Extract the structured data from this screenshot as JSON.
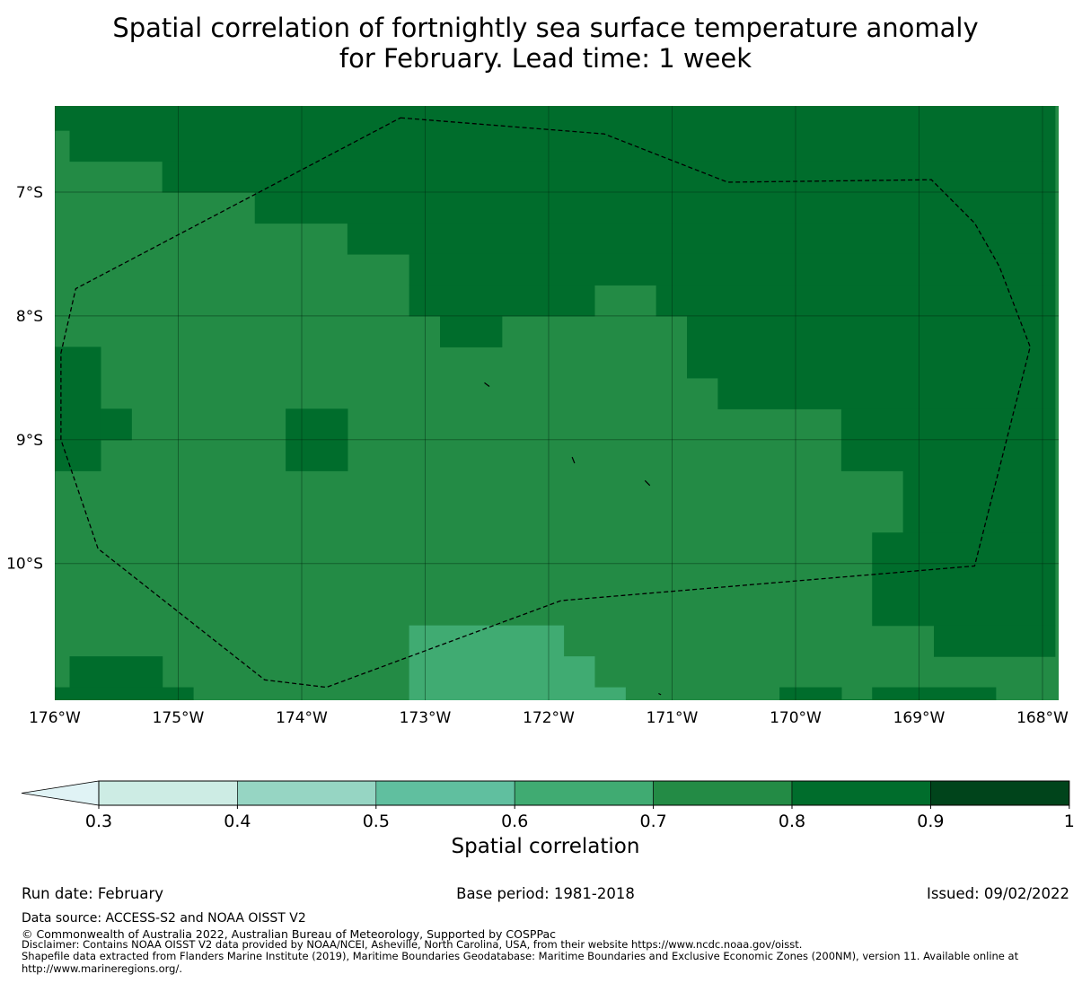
{
  "title": {
    "line1": "Spatial correlation of fortnightly sea surface temperature anomaly",
    "line2": "for February. Lead time: 1 week"
  },
  "chart_data": {
    "type": "heatmap",
    "title": "Spatial correlation of fortnightly sea surface temperature anomaly for February. Lead time: 1 week",
    "x_ticks": [
      {
        "value": -176,
        "label": "176°W"
      },
      {
        "value": -175,
        "label": "175°W"
      },
      {
        "value": -174,
        "label": "174°W"
      },
      {
        "value": -173,
        "label": "173°W"
      },
      {
        "value": -172,
        "label": "172°W"
      },
      {
        "value": -171,
        "label": "171°W"
      },
      {
        "value": -170,
        "label": "170°W"
      },
      {
        "value": -169,
        "label": "169°W"
      },
      {
        "value": -168,
        "label": "168°W"
      }
    ],
    "y_ticks": [
      {
        "value": -7,
        "label": "7°S"
      },
      {
        "value": -8,
        "label": "8°S"
      },
      {
        "value": -9,
        "label": "9°S"
      },
      {
        "value": -10,
        "label": "10°S"
      }
    ],
    "lon_range": [
      -176,
      -167.9
    ],
    "lat_range": [
      -11.15,
      -6.3
    ],
    "grid": true,
    "color_levels": [
      {
        "min": 0.3,
        "max": 0.4,
        "color": "#cdece4"
      },
      {
        "min": 0.4,
        "max": 0.5,
        "color": "#96d5c3"
      },
      {
        "min": 0.5,
        "max": 0.6,
        "color": "#60bf9f"
      },
      {
        "min": 0.6,
        "max": 0.7,
        "color": "#40ab72"
      },
      {
        "min": 0.7,
        "max": 0.8,
        "color": "#238b45"
      },
      {
        "min": 0.8,
        "max": 0.9,
        "color": "#006d2c"
      },
      {
        "min": 0.9,
        "max": 1.0,
        "color": "#00441b"
      }
    ],
    "extend_min_color": "#e0f3f5",
    "background_value": 0.75,
    "cells": [
      {
        "lon": [
          -176.0,
          -167.9
        ],
        "lat": [
          -6.5,
          -6.3
        ],
        "value": 0.85
      },
      {
        "lon": [
          -175.88,
          -167.9
        ],
        "lat": [
          -6.75,
          -6.5
        ],
        "value": 0.85
      },
      {
        "lon": [
          -175.13,
          -167.9
        ],
        "lat": [
          -7.0,
          -6.75
        ],
        "value": 0.85
      },
      {
        "lon": [
          -174.38,
          -167.9
        ],
        "lat": [
          -7.25,
          -7.0
        ],
        "value": 0.85
      },
      {
        "lon": [
          -173.63,
          -167.9
        ],
        "lat": [
          -7.5,
          -7.25
        ],
        "value": 0.85
      },
      {
        "lon": [
          -173.13,
          -167.9
        ],
        "lat": [
          -7.75,
          -7.5
        ],
        "value": 0.85
      },
      {
        "lon": [
          -173.13,
          -171.63
        ],
        "lat": [
          -8.0,
          -7.75
        ],
        "value": 0.85
      },
      {
        "lon": [
          -171.13,
          -167.9
        ],
        "lat": [
          -8.0,
          -7.75
        ],
        "value": 0.85
      },
      {
        "lon": [
          -172.88,
          -172.38
        ],
        "lat": [
          -8.25,
          -8.0
        ],
        "value": 0.85
      },
      {
        "lon": [
          -170.88,
          -167.9
        ],
        "lat": [
          -8.5,
          -8.0
        ],
        "value": 0.85
      },
      {
        "lon": [
          -170.63,
          -167.9
        ],
        "lat": [
          -8.75,
          -8.5
        ],
        "value": 0.85
      },
      {
        "lon": [
          -169.63,
          -167.9
        ],
        "lat": [
          -9.25,
          -8.75
        ],
        "value": 0.85
      },
      {
        "lon": [
          -169.13,
          -167.9
        ],
        "lat": [
          -9.75,
          -9.25
        ],
        "value": 0.85
      },
      {
        "lon": [
          -169.38,
          -167.9
        ],
        "lat": [
          -10.5,
          -9.75
        ],
        "value": 0.85
      },
      {
        "lon": [
          -168.88,
          -167.9
        ],
        "lat": [
          -10.75,
          -10.5
        ],
        "value": 0.85
      },
      {
        "lon": [
          -176.0,
          -175.63
        ],
        "lat": [
          -9.25,
          -8.25
        ],
        "value": 0.85
      },
      {
        "lon": [
          -175.63,
          -175.38
        ],
        "lat": [
          -9.0,
          -8.75
        ],
        "value": 0.85
      },
      {
        "lon": [
          -174.13,
          -173.63
        ],
        "lat": [
          -9.25,
          -8.75
        ],
        "value": 0.85
      },
      {
        "lon": [
          -175.88,
          -175.13
        ],
        "lat": [
          -11.0,
          -10.75
        ],
        "value": 0.85
      },
      {
        "lon": [
          -176.0,
          -174.88
        ],
        "lat": [
          -11.15,
          -11.0
        ],
        "value": 0.85
      },
      {
        "lon": [
          -170.13,
          -169.63
        ],
        "lat": [
          -11.15,
          -11.0
        ],
        "value": 0.85
      },
      {
        "lon": [
          -169.38,
          -168.38
        ],
        "lat": [
          -11.15,
          -11.0
        ],
        "value": 0.85
      },
      {
        "lon": [
          -169.63,
          -169.38
        ],
        "lat": [
          -11.15,
          -11.1
        ],
        "value": 0.85
      },
      {
        "lon": [
          -173.13,
          -171.88
        ],
        "lat": [
          -11.15,
          -10.5
        ],
        "value": 0.65
      },
      {
        "lon": [
          -171.88,
          -171.63
        ],
        "lat": [
          -11.15,
          -10.75
        ],
        "value": 0.65
      },
      {
        "lon": [
          -171.63,
          -171.38
        ],
        "lat": [
          -11.15,
          -11.0
        ],
        "value": 0.65
      }
    ],
    "eez_boundary": [
      [
        -173.2,
        -6.4
      ],
      [
        -171.55,
        -6.53
      ],
      [
        -170.55,
        -6.92
      ],
      [
        -168.9,
        -6.9
      ],
      [
        -168.55,
        -7.25
      ],
      [
        -168.35,
        -7.6
      ],
      [
        -168.1,
        -8.25
      ],
      [
        -168.55,
        -10.02
      ],
      [
        -171.9,
        -10.3
      ],
      [
        -173.8,
        -11.0
      ],
      [
        -174.3,
        -10.94
      ],
      [
        -175.65,
        -9.88
      ],
      [
        -175.95,
        -9.0
      ],
      [
        -175.95,
        -8.3
      ],
      [
        -175.83,
        -7.78
      ]
    ],
    "islands": [
      [
        [
          -172.52,
          -8.54
        ],
        [
          -172.48,
          -8.57
        ]
      ],
      [
        [
          -171.81,
          -9.14
        ],
        [
          -171.79,
          -9.19
        ]
      ],
      [
        [
          -171.22,
          -9.33
        ],
        [
          -171.18,
          -9.37
        ]
      ],
      [
        [
          -171.11,
          -11.05
        ],
        [
          -171.09,
          -11.06
        ]
      ]
    ],
    "colorbar": {
      "label": "Spatial correlation",
      "ticks": [
        "0.3",
        "0.4",
        "0.5",
        "0.6",
        "0.7",
        "0.8",
        "0.9",
        "1"
      ],
      "extend": "min"
    }
  },
  "footer": {
    "run_date": "Run date: February",
    "base_period": "Base period: 1981-2018",
    "issued": "Issued: 09/02/2022",
    "data_source": "Data source: ACCESS-S2 and NOAA OISST V2",
    "copyright": "© Commonwealth of Australia 2022, Australian Bureau of Meteorology, Supported by COSPPac",
    "disclaimer": "Disclaimer: Contains NOAA OISST V2 data provided by NOAA/NCEI, Asheville, North Carolina, USA, from their website https://www.ncdc.noaa.gov/oisst.",
    "shapefile_line1": "Shapefile data extracted from Flanders Marine Institute (2019), Maritime Boundaries Geodatabase: Maritime Boundaries and Exclusive Economic Zones (200NM), version 11. Available online at",
    "shapefile_line2": "http://www.marineregions.org/."
  }
}
